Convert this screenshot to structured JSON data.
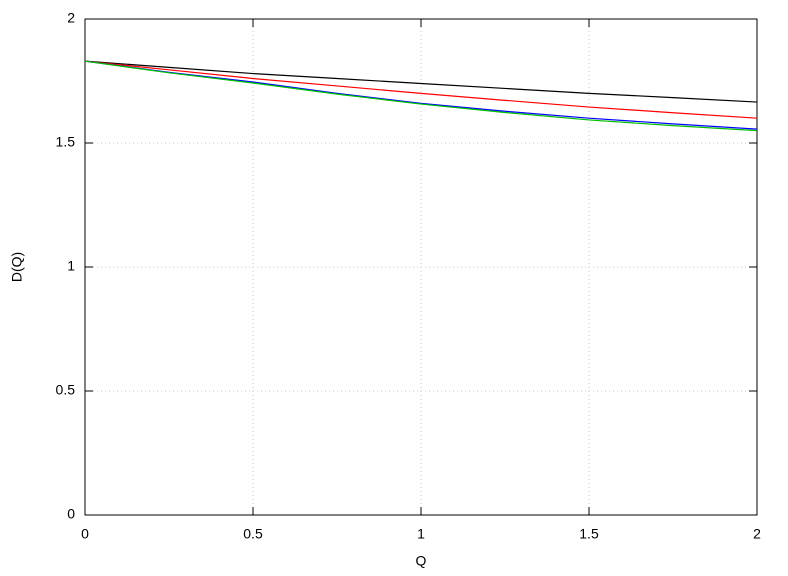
{
  "chart_data": {
    "type": "line",
    "x_label": "Q",
    "y_label": "D(Q)",
    "x": [
      0,
      0.25,
      0.5,
      0.75,
      1,
      1.25,
      1.5,
      1.75,
      2
    ],
    "series": [
      {
        "color": "#000000",
        "values": [
          1.83,
          1.805,
          1.78,
          1.76,
          1.74,
          1.72,
          1.7,
          1.683,
          1.665
        ]
      },
      {
        "color": "#ff0000",
        "values": [
          1.83,
          1.795,
          1.76,
          1.73,
          1.7,
          1.672,
          1.645,
          1.622,
          1.6
        ]
      },
      {
        "color": "#0000ff",
        "values": [
          1.83,
          1.785,
          1.746,
          1.7,
          1.66,
          1.628,
          1.6,
          1.577,
          1.556
        ]
      },
      {
        "color": "#00c000",
        "values": [
          1.83,
          1.783,
          1.742,
          1.697,
          1.657,
          1.623,
          1.593,
          1.57,
          1.55
        ]
      }
    ],
    "xlim": [
      0,
      2
    ],
    "xticks": [
      0,
      0.5,
      1,
      1.5,
      2
    ],
    "ylim": [
      0,
      2
    ],
    "yticks": [
      0,
      0.5,
      1,
      1.5,
      2
    ],
    "grid": true
  }
}
